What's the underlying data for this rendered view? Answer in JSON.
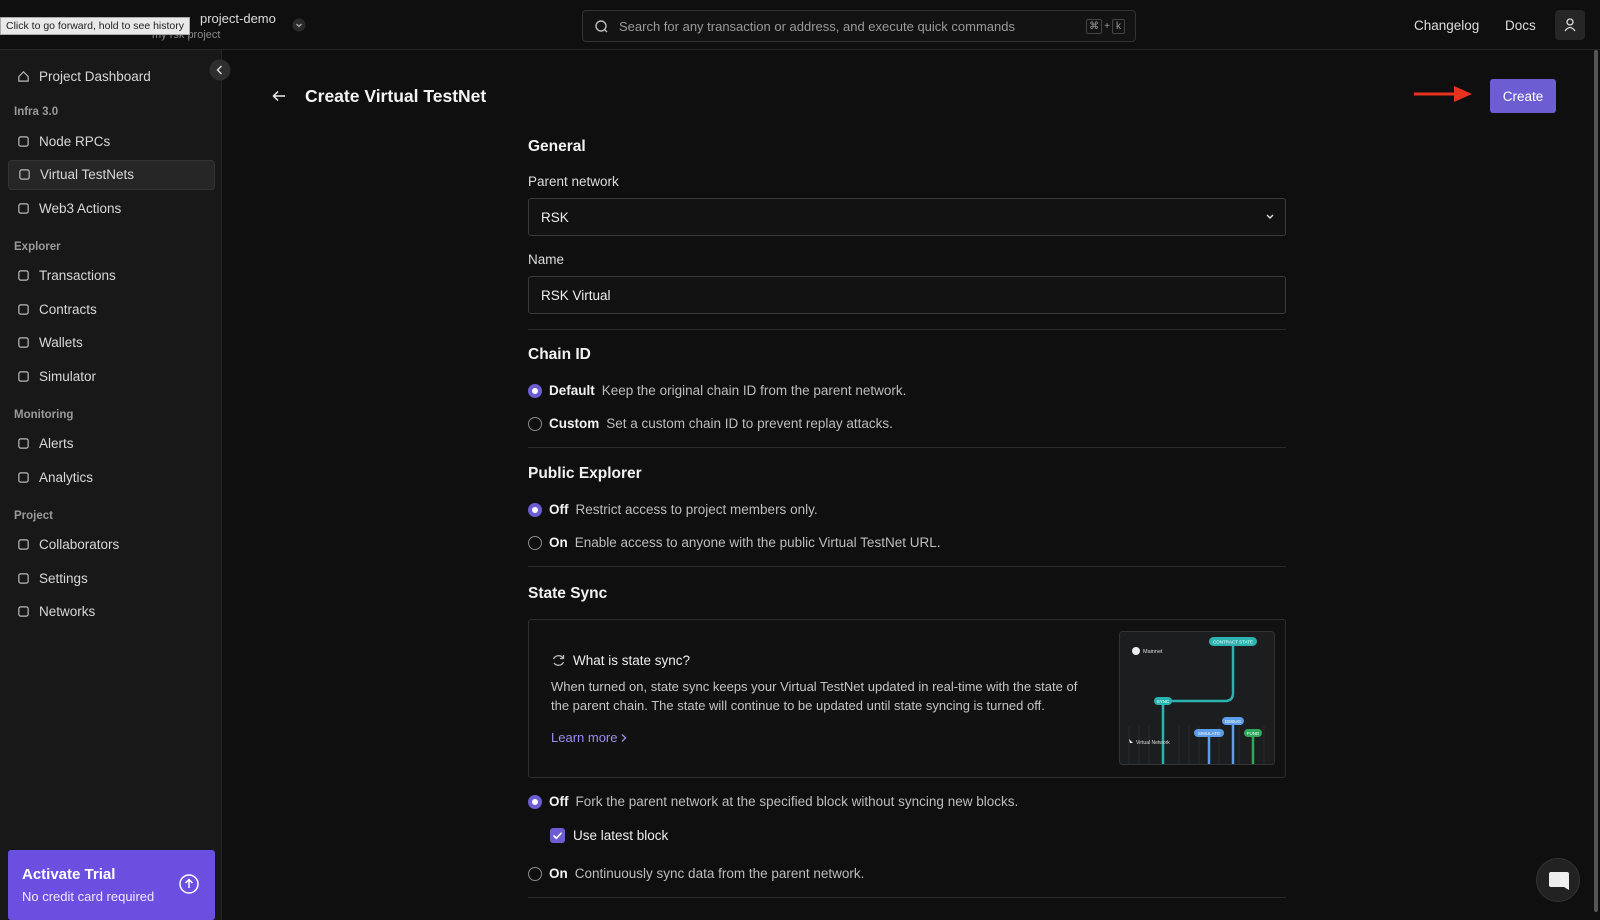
{
  "tooltip": "Click to go forward, hold to see history",
  "topbar": {
    "project_name": "project-demo",
    "project_subtitle": "my rsk project",
    "search_placeholder": "Search for any transaction or address, and execute quick commands",
    "shortcut": [
      "⌘",
      "+",
      "k"
    ],
    "links": [
      "Changelog",
      "Docs"
    ]
  },
  "sidebar": {
    "top_item": "Project Dashboard",
    "sections": [
      {
        "title": "Infra 3.0",
        "items": [
          "Node RPCs",
          "Virtual TestNets",
          "Web3 Actions"
        ]
      },
      {
        "title": "Explorer",
        "items": [
          "Transactions",
          "Contracts",
          "Wallets",
          "Simulator"
        ]
      },
      {
        "title": "Monitoring",
        "items": [
          "Alerts",
          "Analytics"
        ]
      },
      {
        "title": "Project",
        "items": [
          "Collaborators",
          "Settings",
          "Networks"
        ]
      }
    ],
    "trial": {
      "title": "Activate Trial",
      "subtitle": "No credit card required"
    }
  },
  "page": {
    "title": "Create Virtual TestNet",
    "create_button": "Create",
    "general": {
      "heading": "General",
      "parent_label": "Parent network",
      "parent_value": "RSK",
      "name_label": "Name",
      "name_value": "RSK Virtual"
    },
    "chain_id": {
      "heading": "Chain ID",
      "options": [
        {
          "label": "Default",
          "description": "Keep the original chain ID from the parent network."
        },
        {
          "label": "Custom",
          "description": "Set a custom chain ID to prevent replay attacks."
        }
      ]
    },
    "public_explorer": {
      "heading": "Public Explorer",
      "options": [
        {
          "label": "Off",
          "description": "Restrict access to project members only."
        },
        {
          "label": "On",
          "description": "Enable access to anyone with the public Virtual TestNet URL."
        }
      ]
    },
    "state_sync": {
      "heading": "State Sync",
      "info": {
        "title": "What is state sync?",
        "text": "When turned on, state sync keeps your Virtual TestNet updated in real-time with the state of the parent chain. The state will continue to be updated until state syncing is turned off.",
        "link": "Learn more",
        "diagram": {
          "mainnet": "Mainnet",
          "contract_state": "CONTRACT STATE",
          "sync": "SYNC",
          "simulate": "SIMULATE",
          "debug": "DEBUG",
          "fund": "FUND",
          "virtual_network": "Virtual Network"
        }
      },
      "options": [
        {
          "label": "Off",
          "description": "Fork the parent network at the specified block without syncing new blocks."
        },
        {
          "label": "On",
          "description": "Continuously sync data from the parent network."
        }
      ],
      "checkbox": "Use latest block"
    }
  }
}
